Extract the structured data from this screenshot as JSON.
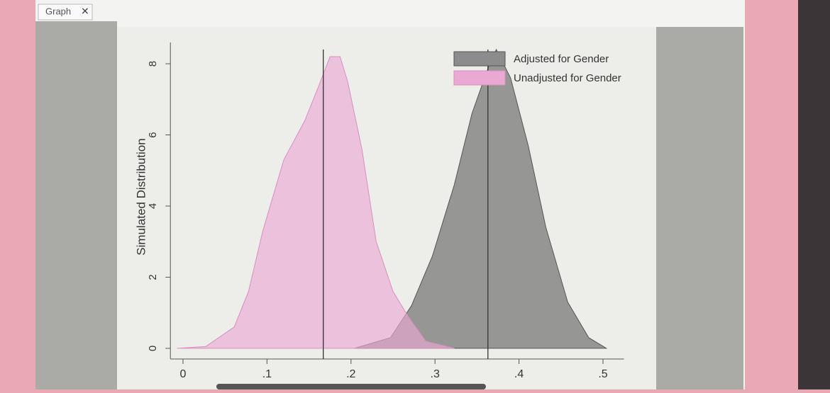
{
  "tab_label": "Graph",
  "chart_data": {
    "type": "area",
    "ylabel": "Simulated Distribution",
    "xlim": [
      -0.015,
      0.525
    ],
    "ylim": [
      -0.3,
      8.6
    ],
    "xticks": [
      0,
      {
        "value": 0.1,
        "label": ".1"
      },
      {
        "value": 0.2,
        "label": ".2"
      },
      {
        "value": 0.3,
        "label": ".3"
      },
      {
        "value": 0.4,
        "label": ".4"
      },
      {
        "value": 0.5,
        "label": ".5"
      }
    ],
    "yticks": [
      0,
      2,
      4,
      6,
      8
    ],
    "vlines": [
      0.167,
      0.363
    ],
    "legend": "top-right",
    "series": [
      {
        "name": "Adjusted for Gender",
        "color": "#8c8c8c",
        "x": [
          0.204,
          0.247,
          0.272,
          0.297,
          0.323,
          0.344,
          0.365,
          0.373,
          0.39,
          0.411,
          0.432,
          0.458,
          0.483,
          0.504
        ],
        "values": [
          0,
          0.3,
          1.2,
          2.6,
          4.6,
          6.6,
          8.0,
          8.4,
          7.6,
          5.7,
          3.4,
          1.3,
          0.3,
          0
        ]
      },
      {
        "name": "Unadjusted for Gender",
        "color": "#e9a9d2",
        "x": [
          -0.007,
          0.027,
          0.061,
          0.078,
          0.095,
          0.12,
          0.145,
          0.162,
          0.175,
          0.187,
          0.196,
          0.213,
          0.23,
          0.25,
          0.268,
          0.289,
          0.323
        ],
        "values": [
          0,
          0.05,
          0.6,
          1.6,
          3.3,
          5.3,
          6.4,
          7.4,
          8.2,
          8.2,
          7.5,
          5.6,
          3.0,
          1.6,
          0.9,
          0.2,
          0
        ]
      }
    ]
  }
}
